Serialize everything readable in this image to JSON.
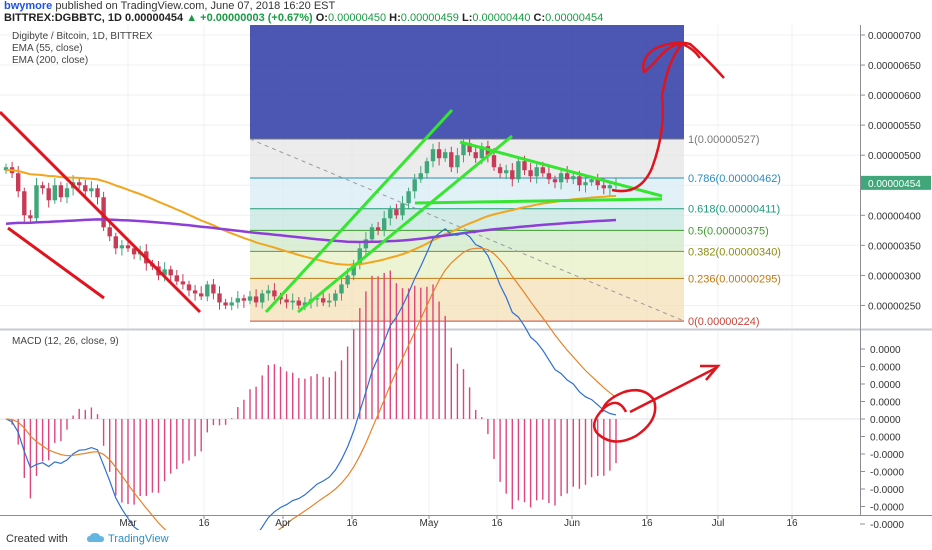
{
  "header": {
    "user": "bwymore",
    "published": "published on TradingView.com, June 07, 2018 16:20 EST",
    "symbol_line": "BITTREX:DGBBTC, 1D",
    "price": "0.00000454",
    "change": "▲ +0.00000003 (+0.67%)",
    "ohlc": {
      "o_label": "O:",
      "o": "0.00000450",
      "h_label": "H:",
      "h": "0.00000459",
      "l_label": "L:",
      "l": "0.00000440",
      "c_label": "C:",
      "c": "0.00000454"
    }
  },
  "legend": {
    "title": "Digibyte / Bitcoin, 1D, BITTREX",
    "ema55": "EMA (55, close)",
    "ema200": "EMA (200, close)",
    "macd": "MACD (12, 26, close, 9)"
  },
  "footer": {
    "created": "Created with",
    "brand": "TradingView"
  },
  "colors": {
    "up": "#3fa77a",
    "down": "#c73b57",
    "ema55": "#f2a51d",
    "ema200": "#8e3ed8",
    "macd": "#2f6fd1",
    "signal": "#e8822a",
    "hist": "#e0457b",
    "drawing_green": "#35e631",
    "drawing_red": "#e0141e"
  },
  "chart_data": [
    {
      "type": "candlestick",
      "title": "Digibyte / Bitcoin, 1D, BITTREX",
      "ylim": [
        2.2e-06,
        7.2e-06
      ],
      "y_ticks": [
        "0.00000700",
        "0.00000650",
        "0.00000600",
        "0.00000550",
        "0.00000500",
        "0.00000450",
        "0.00000400",
        "0.00000350",
        "0.00000300",
        "0.00000250"
      ],
      "last_price_label": "0.00000454",
      "x_ticks": [
        "Mar",
        "16",
        "Apr",
        "16",
        "May",
        "16",
        "Jun",
        "16",
        "Jul",
        "16"
      ],
      "close": [
        480,
        470,
        440,
        400,
        395,
        450,
        445,
        425,
        450,
        430,
        445,
        455,
        450,
        440,
        445,
        430,
        380,
        365,
        345,
        350,
        345,
        335,
        340,
        320,
        315,
        300,
        310,
        300,
        290,
        285,
        275,
        270,
        265,
        285,
        270,
        255,
        250,
        255,
        262,
        258,
        265,
        255,
        270,
        275,
        265,
        260,
        255,
        258,
        250,
        255,
        260,
        262,
        255,
        258,
        270,
        285,
        300,
        320,
        345,
        360,
        380,
        375,
        395,
        410,
        400,
        420,
        440,
        460,
        470,
        490,
        510,
        495,
        505,
        480,
        500,
        520,
        505,
        495,
        515,
        500,
        480,
        470,
        475,
        460,
        490,
        475,
        465,
        480,
        470,
        460,
        455,
        470,
        460,
        465,
        450,
        455,
        460,
        450,
        445,
        450,
        454
      ],
      "fib_levels": [
        {
          "label": "1(0.00000527)",
          "value": 527
        },
        {
          "label": "0.786(0.00000462)",
          "value": 462
        },
        {
          "label": "0.618(0.00000411)",
          "value": 411
        },
        {
          "label": "0.5(0.00000375)",
          "value": 375
        },
        {
          "label": "0.382(0.00000340)",
          "value": 340
        },
        {
          "label": "0.236(0.00000295)",
          "value": 295
        },
        {
          "label": "0(0.00000224)",
          "value": 224
        }
      ],
      "series": [
        {
          "name": "EMA (55, close)"
        },
        {
          "name": "EMA (200, close)"
        }
      ]
    },
    {
      "type": "macd",
      "title": "MACD (12, 26, close, 9)",
      "y_ticks": [
        "0.0000",
        "0.0000",
        "0.0000",
        "0.0000",
        "0.0000",
        "0.0000",
        "-0.0000",
        "-0.0000",
        "-0.0000",
        "-0.0000",
        "-0.0000",
        "-0.0000"
      ]
    }
  ]
}
